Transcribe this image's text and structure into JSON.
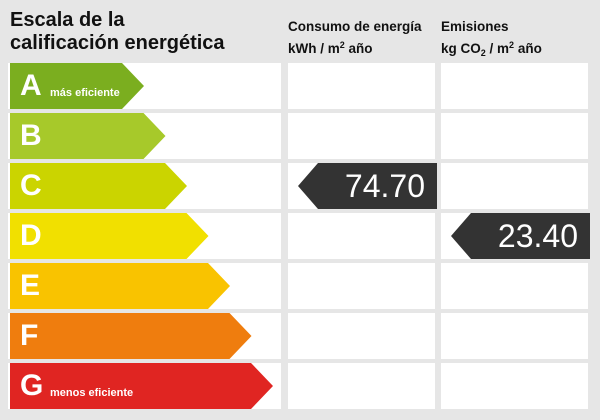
{
  "title_line1": "Escala de la",
  "title_line2": "calificación energética",
  "col1": {
    "line1": "Consumo de energía",
    "line2a": "kWh / m",
    "line2sup": "2",
    "line2b": " año"
  },
  "col2": {
    "line1": "Emisiones",
    "line2a": "kg CO",
    "line2sub": "2",
    "line2b": " / m",
    "line2sup": "2",
    "line2c": " año"
  },
  "classes": [
    {
      "letter": "A",
      "note": "más eficiente",
      "color": "#7bae1f"
    },
    {
      "letter": "B",
      "note": "",
      "color": "#a7c92a"
    },
    {
      "letter": "C",
      "note": "",
      "color": "#cbd400"
    },
    {
      "letter": "D",
      "note": "",
      "color": "#f1e000"
    },
    {
      "letter": "E",
      "note": "",
      "color": "#f9c300"
    },
    {
      "letter": "F",
      "note": "",
      "color": "#ef7d0e"
    },
    {
      "letter": "G",
      "note": "menos eficiente",
      "color": "#e02522"
    }
  ],
  "consumption": {
    "value": "74.70",
    "class": "C"
  },
  "emissions": {
    "value": "23.40",
    "class": "D"
  },
  "indicator_color": "#333333"
}
